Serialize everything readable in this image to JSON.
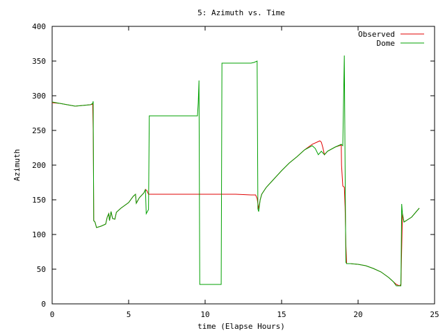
{
  "chart_data": {
    "type": "line",
    "title": "5: Azimuth vs. Time",
    "xlabel": "time (Elapse Hours)",
    "ylabel": "Azimuth",
    "xlim": [
      0,
      25
    ],
    "ylim": [
      0,
      400
    ],
    "x_ticks": [
      "0",
      "5",
      "10",
      "15",
      "20",
      "25"
    ],
    "y_ticks": [
      "0",
      "50",
      "100",
      "150",
      "200",
      "250",
      "300",
      "350",
      "400"
    ],
    "grid": false,
    "legend_position": "top-right",
    "series": [
      {
        "name": "Observed",
        "color": "#e00000",
        "points": [
          [
            0,
            290
          ],
          [
            0.5,
            289
          ],
          [
            1.0,
            287
          ],
          [
            1.5,
            285
          ],
          [
            2.0,
            286
          ],
          [
            2.5,
            287
          ],
          [
            2.65,
            288
          ],
          [
            2.68,
            252
          ],
          [
            2.7,
            200
          ],
          [
            2.72,
            120
          ],
          [
            2.8,
            118
          ],
          [
            2.9,
            110
          ],
          [
            3.2,
            112
          ],
          [
            3.5,
            115
          ],
          [
            3.6,
            125
          ],
          [
            3.7,
            130
          ],
          [
            3.75,
            120
          ],
          [
            3.85,
            133
          ],
          [
            3.95,
            123
          ],
          [
            4.1,
            122
          ],
          [
            4.2,
            132
          ],
          [
            4.5,
            138
          ],
          [
            5.0,
            146
          ],
          [
            5.3,
            155
          ],
          [
            5.45,
            158
          ],
          [
            5.5,
            145
          ],
          [
            5.7,
            153
          ],
          [
            6.0,
            160
          ],
          [
            6.1,
            165
          ],
          [
            6.2,
            163
          ],
          [
            6.3,
            158
          ],
          [
            8.0,
            158
          ],
          [
            9.5,
            158
          ],
          [
            11.0,
            158
          ],
          [
            12.0,
            158
          ],
          [
            13.0,
            157
          ],
          [
            13.3,
            157
          ],
          [
            13.4,
            152
          ],
          [
            13.5,
            137
          ],
          [
            13.6,
            150
          ],
          [
            13.7,
            158
          ],
          [
            14.0,
            168
          ],
          [
            14.5,
            180
          ],
          [
            15.0,
            192
          ],
          [
            15.5,
            203
          ],
          [
            16.0,
            212
          ],
          [
            16.5,
            222
          ],
          [
            17.0,
            230
          ],
          [
            17.5,
            235
          ],
          [
            17.6,
            233
          ],
          [
            17.7,
            225
          ],
          [
            17.8,
            215
          ],
          [
            18.0,
            220
          ],
          [
            18.5,
            226
          ],
          [
            18.9,
            229
          ],
          [
            18.92,
            200
          ],
          [
            19.0,
            170
          ],
          [
            19.1,
            168
          ],
          [
            19.15,
            140
          ],
          [
            19.2,
            86
          ],
          [
            19.25,
            58
          ],
          [
            19.5,
            58
          ],
          [
            20.0,
            57
          ],
          [
            20.5,
            55
          ],
          [
            21.0,
            51
          ],
          [
            21.5,
            46
          ],
          [
            22.0,
            38
          ],
          [
            22.3,
            32
          ],
          [
            22.5,
            28
          ],
          [
            22.7,
            26
          ],
          [
            22.8,
            28
          ],
          [
            22.9,
            130
          ],
          [
            23.0,
            118
          ],
          [
            23.5,
            125
          ],
          [
            24.0,
            138
          ]
        ]
      },
      {
        "name": "Dome",
        "color": "#00a000",
        "points": [
          [
            0,
            291
          ],
          [
            0.5,
            289
          ],
          [
            1.0,
            287
          ],
          [
            1.5,
            285
          ],
          [
            2.0,
            286
          ],
          [
            2.5,
            287
          ],
          [
            2.65,
            289
          ],
          [
            2.68,
            292
          ],
          [
            2.7,
            200
          ],
          [
            2.72,
            120
          ],
          [
            2.8,
            118
          ],
          [
            2.9,
            110
          ],
          [
            3.2,
            112
          ],
          [
            3.5,
            115
          ],
          [
            3.6,
            125
          ],
          [
            3.7,
            130
          ],
          [
            3.75,
            120
          ],
          [
            3.85,
            133
          ],
          [
            3.95,
            123
          ],
          [
            4.1,
            122
          ],
          [
            4.2,
            132
          ],
          [
            4.5,
            138
          ],
          [
            5.0,
            146
          ],
          [
            5.3,
            155
          ],
          [
            5.45,
            158
          ],
          [
            5.5,
            145
          ],
          [
            5.7,
            153
          ],
          [
            6.0,
            160
          ],
          [
            6.1,
            165
          ],
          [
            6.15,
            130
          ],
          [
            6.3,
            136
          ],
          [
            6.35,
            271
          ],
          [
            7.0,
            271
          ],
          [
            8.0,
            271
          ],
          [
            9.0,
            271
          ],
          [
            9.5,
            271
          ],
          [
            9.55,
            290
          ],
          [
            9.6,
            322
          ],
          [
            9.65,
            28
          ],
          [
            10.5,
            28
          ],
          [
            11.0,
            28
          ],
          [
            11.05,
            28
          ],
          [
            11.1,
            347
          ],
          [
            12.0,
            347
          ],
          [
            13.0,
            347
          ],
          [
            13.2,
            348
          ],
          [
            13.4,
            350
          ],
          [
            13.45,
            137
          ],
          [
            13.5,
            133
          ],
          [
            13.6,
            150
          ],
          [
            13.7,
            158
          ],
          [
            14.0,
            168
          ],
          [
            14.5,
            180
          ],
          [
            15.0,
            192
          ],
          [
            15.5,
            203
          ],
          [
            16.0,
            212
          ],
          [
            16.5,
            222
          ],
          [
            17.0,
            228
          ],
          [
            17.2,
            224
          ],
          [
            17.4,
            215
          ],
          [
            17.6,
            220
          ],
          [
            17.8,
            215
          ],
          [
            18.0,
            220
          ],
          [
            18.5,
            226
          ],
          [
            18.9,
            230
          ],
          [
            19.0,
            228
          ],
          [
            19.1,
            358
          ],
          [
            19.15,
            200
          ],
          [
            19.2,
            60
          ],
          [
            19.25,
            58
          ],
          [
            19.5,
            58
          ],
          [
            20.0,
            57
          ],
          [
            20.5,
            55
          ],
          [
            21.0,
            51
          ],
          [
            21.5,
            46
          ],
          [
            22.0,
            38
          ],
          [
            22.3,
            32
          ],
          [
            22.5,
            26
          ],
          [
            22.8,
            26
          ],
          [
            22.85,
            144
          ],
          [
            22.9,
            130
          ],
          [
            23.0,
            118
          ],
          [
            23.5,
            125
          ],
          [
            24.0,
            138
          ]
        ]
      }
    ]
  }
}
